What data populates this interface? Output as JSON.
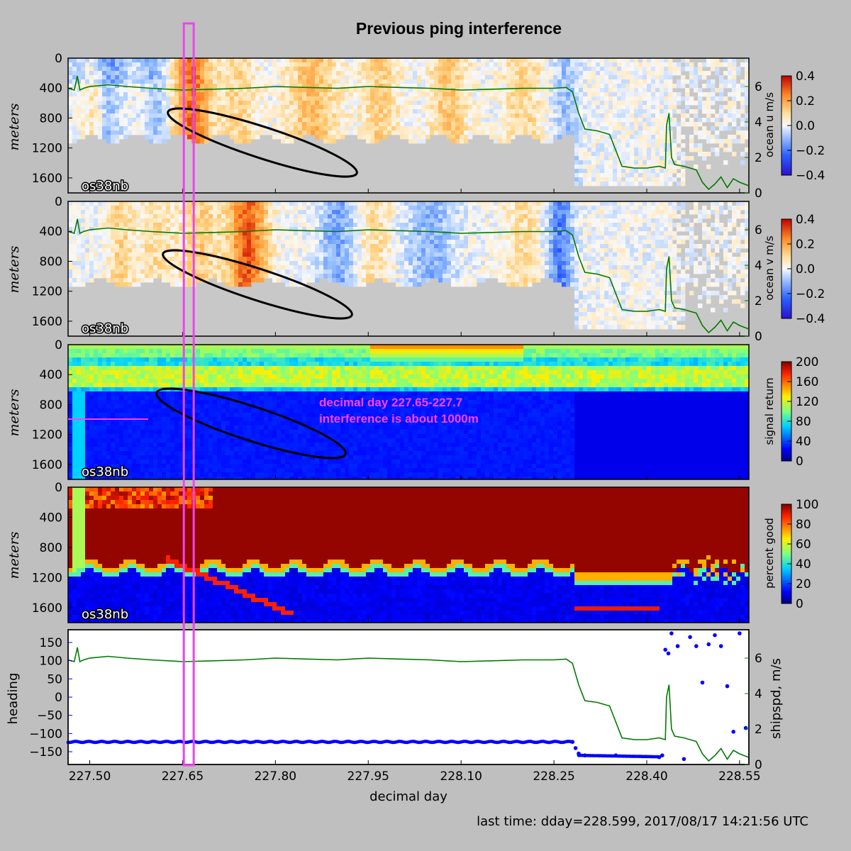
{
  "figure": {
    "title": "Previous ping interference",
    "footer": "last time: dday=228.599,  2017/08/17 14:21:56 UTC",
    "xlabel": "decimal day",
    "xlim": [
      227.465,
      228.565
    ],
    "xticks": [
      227.5,
      227.65,
      227.8,
      227.95,
      228.1,
      228.25,
      228.4,
      228.55
    ],
    "xtick_labels": [
      "227.50",
      "227.65",
      "227.80",
      "227.95",
      "228.10",
      "228.25",
      "228.40",
      "228.55"
    ],
    "instrument_label": "os38nb",
    "highlight_range": [
      227.652,
      227.668
    ],
    "colors": {
      "background": "#bfbfbf",
      "nodata": "#c8c8c8",
      "highlight": "#ee44ee",
      "shipspd": "#007a00",
      "heading": "#0000ff",
      "annotation": "#ff40ff"
    }
  },
  "panels": [
    {
      "id": "u",
      "ylabel": "meters",
      "yticks": [
        0,
        400,
        800,
        1200,
        1600
      ],
      "yticklabels": [
        "0",
        "400",
        "800",
        "1200",
        "1600"
      ],
      "right_ticks": [
        "0",
        "2",
        "4",
        "6"
      ],
      "colorbar": {
        "label": "ocean u m/s",
        "ticks": [
          "0.4",
          "0.2",
          "0.0",
          "−0.2",
          "−0.4"
        ],
        "cmap": "bwr"
      }
    },
    {
      "id": "v",
      "ylabel": "meters",
      "yticks": [
        0,
        400,
        800,
        1200,
        1600
      ],
      "yticklabels": [
        "0",
        "400",
        "800",
        "1200",
        "1600"
      ],
      "right_ticks": [
        "0",
        "2",
        "4",
        "6"
      ],
      "colorbar": {
        "label": "ocean v m/s",
        "ticks": [
          "0.4",
          "0.2",
          "0.0",
          "−0.2",
          "−0.4"
        ],
        "cmap": "bwr"
      }
    },
    {
      "id": "amp",
      "ylabel": "meters",
      "yticks": [
        0,
        400,
        800,
        1200,
        1600
      ],
      "yticklabels": [
        "0",
        "400",
        "800",
        "1200",
        "1600"
      ],
      "colorbar": {
        "label": "signal return",
        "ticks": [
          "200",
          "160",
          "120",
          "80",
          "40",
          "0"
        ],
        "cmap": "jet"
      },
      "annotation": [
        "decimal day 227.65-227.7",
        "interference is about 1000m"
      ]
    },
    {
      "id": "pg",
      "ylabel": "meters",
      "yticks": [
        0,
        400,
        800,
        1200,
        1600
      ],
      "yticklabels": [
        "0",
        "400",
        "800",
        "1200",
        "1600"
      ],
      "colorbar": {
        "label": "percent good",
        "ticks": [
          "100",
          "80",
          "60",
          "40",
          "20",
          "0"
        ],
        "cmap": "jet"
      }
    },
    {
      "id": "heading",
      "ylabel": "heading",
      "right_label": "shipspd, m/s",
      "yticks": [
        150,
        100,
        50,
        0,
        -50,
        -100,
        -150
      ],
      "yticklabels": [
        "150",
        "100",
        "50",
        "0",
        "−50",
        "−100",
        "−150"
      ],
      "right_ticks": [
        "0",
        "2",
        "4",
        "6"
      ]
    }
  ],
  "chart_data": {
    "type": "heatmap",
    "x_axis": "decimal day",
    "depth_axis": "meters",
    "depth_range": [
      0,
      1800
    ],
    "depth_ticks": [
      0,
      400,
      800,
      1200,
      1600
    ],
    "ocean_u": {
      "units": "m/s",
      "clim": [
        -0.4,
        0.4
      ]
    },
    "ocean_v": {
      "units": "m/s",
      "clim": [
        -0.4,
        0.4
      ]
    },
    "signal_return": {
      "clim": [
        0,
        200
      ]
    },
    "percent_good": {
      "clim": [
        0,
        100
      ]
    },
    "shipspd": {
      "units": "m/s",
      "ylim": [
        0,
        7.6
      ],
      "x": [
        227.465,
        227.475,
        227.48,
        227.484,
        227.49,
        227.5,
        227.53,
        227.56,
        227.6,
        227.65,
        227.7,
        227.75,
        227.8,
        227.85,
        227.9,
        227.95,
        228.0,
        228.05,
        228.1,
        228.15,
        228.2,
        228.25,
        228.27,
        228.28,
        228.29,
        228.3,
        228.32,
        228.34,
        228.36,
        228.38,
        228.4,
        228.42,
        228.43,
        228.432,
        228.436,
        228.44,
        228.445,
        228.46,
        228.47,
        228.48,
        228.49,
        228.5,
        228.51,
        228.52,
        228.53,
        228.54,
        228.55,
        228.565
      ],
      "values": [
        5.9,
        5.8,
        6.6,
        5.8,
        5.9,
        6.0,
        6.1,
        6.0,
        5.9,
        5.8,
        5.85,
        5.9,
        6.0,
        5.95,
        5.9,
        6.0,
        5.95,
        5.9,
        5.8,
        5.85,
        5.9,
        5.9,
        5.95,
        5.7,
        4.5,
        3.6,
        3.5,
        3.3,
        1.5,
        1.4,
        1.4,
        1.5,
        1.4,
        3.8,
        4.5,
        2.0,
        1.6,
        1.5,
        1.4,
        1.3,
        0.6,
        0.2,
        0.5,
        0.9,
        0.3,
        0.8,
        0.6,
        0.4
      ]
    },
    "heading": {
      "units": "deg",
      "ylim": [
        -185,
        185
      ],
      "x": [
        227.465,
        228.28,
        228.285,
        228.29,
        228.3,
        228.35,
        228.42,
        228.425,
        228.43,
        228.435,
        228.44,
        228.45,
        228.46,
        228.47,
        228.48,
        228.49,
        228.5,
        228.51,
        228.52,
        228.53,
        228.54,
        228.55,
        228.56
      ],
      "values": [
        -123,
        -123,
        -140,
        -155,
        -160,
        -160,
        -165,
        -160,
        130,
        120,
        175,
        140,
        -170,
        165,
        140,
        40,
        145,
        170,
        140,
        30,
        -95,
        175,
        -85
      ]
    }
  }
}
